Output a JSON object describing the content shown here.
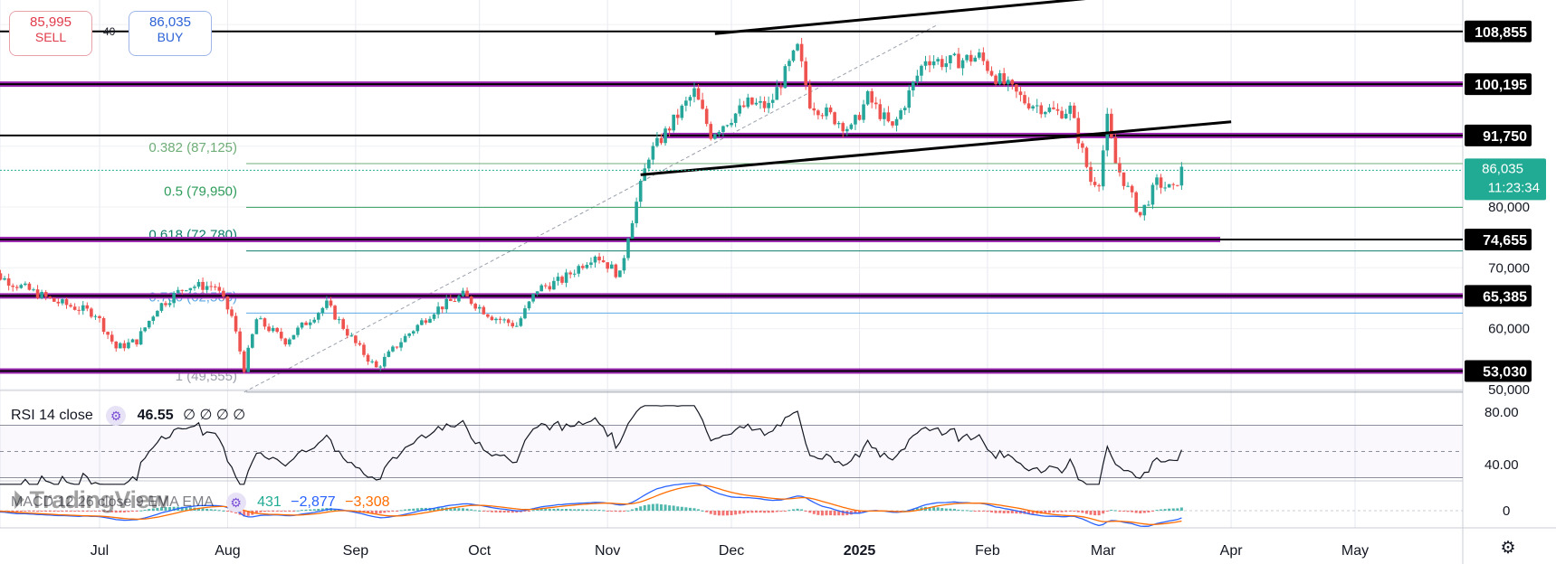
{
  "trade_buttons": {
    "sell_price": "85,995",
    "sell_label": "SELL",
    "buy_price": "86,035",
    "buy_label": "BUY",
    "spread": "40"
  },
  "logo_text": "TradingView",
  "icons": {
    "logo": "tradingview-logo-icon",
    "settings": "gear-icon",
    "indicator": "gear-icon"
  },
  "colors": {
    "up": "#26a69a",
    "down": "#ef5350",
    "level": "#9c27b0",
    "current_price": "#22ab94",
    "fib": "#1b8a3d",
    "macd_line": "#2962ff",
    "signal_line": "#ff6d00"
  },
  "rsi": {
    "title": "RSI 14 close",
    "value": "46.55",
    "placeholders": "∅ ∅ ∅ ∅",
    "axis": [
      "80.00",
      "40.00"
    ]
  },
  "macd": {
    "title": "MACD 12 26 close 9 EMA EMA",
    "values": [
      "431",
      "−2,877",
      "−3,308"
    ],
    "axis": [
      "0"
    ]
  },
  "chart_data": {
    "type": "candlestick",
    "x_labels": [
      "Jul",
      "Aug",
      "Sep",
      "Oct",
      "Nov",
      "Dec",
      "2025",
      "Feb",
      "Mar",
      "Apr",
      "May"
    ],
    "price_axis": [
      "80,000",
      "70,000",
      "60,000",
      "50,000"
    ],
    "price_range": [
      48000,
      116000
    ],
    "grid": true,
    "levels": [
      {
        "label": "108,855",
        "price": 108855,
        "style": "black"
      },
      {
        "label": "100,195",
        "price": 100195,
        "style": "purple"
      },
      {
        "label": "91,750",
        "price": 91750,
        "style": "purple"
      },
      {
        "label": "74,655",
        "price": 74655,
        "style": "purple"
      },
      {
        "label": "65,385",
        "price": 65385,
        "style": "purple"
      },
      {
        "label": "53,030",
        "price": 53030,
        "style": "purple"
      }
    ],
    "current_price": {
      "value": "86,035",
      "countdown": "11:23:34",
      "price": 86035
    },
    "fibonacci": [
      {
        "label": "0.382 (87,125)",
        "price": 87125
      },
      {
        "label": "0.5 (79,950)",
        "price": 79950
      },
      {
        "label": "0.618 (72,780)",
        "price": 72780
      },
      {
        "label": "0.786 (62,565)",
        "price": 62565
      },
      {
        "label": "1 (49,555)",
        "price": 49555
      }
    ],
    "trend_channel": [
      {
        "from": [
          "2024-11-27",
          108500
        ],
        "to": [
          "2025-04-01",
          116500
        ]
      },
      {
        "from": [
          "2024-11-09",
          85300
        ],
        "to": [
          "2025-04-01",
          94000
        ]
      }
    ],
    "rsi_levels": [
      70,
      50,
      30
    ],
    "closes": [
      [
        "2024-06-01",
        70500
      ],
      [
        "2024-06-10",
        67500
      ],
      [
        "2024-06-20",
        64500
      ],
      [
        "2024-06-30",
        62500
      ],
      [
        "2024-07-05",
        56800
      ],
      [
        "2024-07-10",
        58000
      ],
      [
        "2024-07-15",
        63500
      ],
      [
        "2024-07-22",
        67000
      ],
      [
        "2024-07-29",
        67000
      ],
      [
        "2024-08-02",
        62000
      ],
      [
        "2024-08-05",
        53500
      ],
      [
        "2024-08-08",
        61500
      ],
      [
        "2024-08-15",
        58000
      ],
      [
        "2024-08-25",
        64000
      ],
      [
        "2024-09-01",
        57500
      ],
      [
        "2024-09-06",
        53500
      ],
      [
        "2024-09-12",
        58000
      ],
      [
        "2024-09-20",
        63000
      ],
      [
        "2024-09-27",
        65500
      ],
      [
        "2024-10-04",
        62000
      ],
      [
        "2024-10-10",
        60500
      ],
      [
        "2024-10-15",
        66500
      ],
      [
        "2024-10-21",
        68000
      ],
      [
        "2024-10-29",
        72300
      ],
      [
        "2024-11-04",
        68700
      ],
      [
        "2024-11-06",
        75500
      ],
      [
        "2024-11-11",
        88600
      ],
      [
        "2024-11-13",
        90300
      ],
      [
        "2024-11-22",
        98900
      ],
      [
        "2024-11-26",
        92000
      ],
      [
        "2024-12-05",
        97000
      ],
      [
        "2024-12-10",
        96500
      ],
      [
        "2024-12-17",
        106000
      ],
      [
        "2024-12-20",
        97200
      ],
      [
        "2024-12-30",
        92700
      ],
      [
        "2025-01-03",
        98000
      ],
      [
        "2025-01-09",
        92800
      ],
      [
        "2025-01-17",
        104500
      ],
      [
        "2025-01-22",
        103700
      ],
      [
        "2025-01-30",
        104700
      ],
      [
        "2025-02-03",
        101400
      ],
      [
        "2025-02-10",
        97400
      ],
      [
        "2025-02-18",
        95500
      ],
      [
        "2025-02-21",
        96100
      ],
      [
        "2025-02-26",
        84300
      ],
      [
        "2025-02-28",
        84400
      ],
      [
        "2025-03-02",
        94300
      ],
      [
        "2025-03-04",
        87200
      ],
      [
        "2025-03-10",
        78600
      ],
      [
        "2025-03-14",
        84000
      ],
      [
        "2025-03-18",
        82700
      ],
      [
        "2025-03-20",
        86035
      ]
    ]
  }
}
